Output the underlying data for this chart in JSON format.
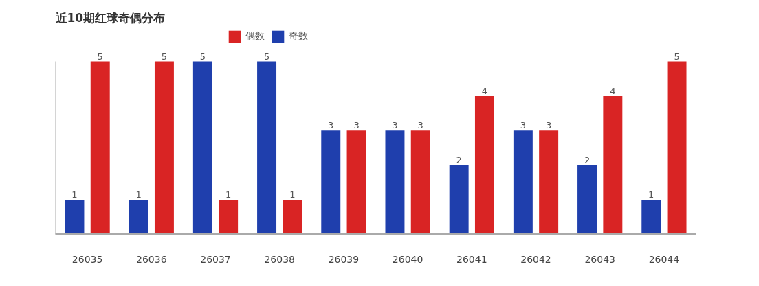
{
  "chart_data": {
    "type": "bar",
    "title": "近10期红球奇偶分布",
    "categories": [
      "26035",
      "26036",
      "26037",
      "26038",
      "26039",
      "26040",
      "26041",
      "26042",
      "26043",
      "26044"
    ],
    "series": [
      {
        "name": "奇数",
        "color": "#1f3fad",
        "values": [
          1,
          1,
          5,
          5,
          3,
          3,
          2,
          3,
          2,
          1
        ]
      },
      {
        "name": "偶数",
        "color": "#d92424",
        "values": [
          5,
          5,
          1,
          1,
          3,
          3,
          4,
          3,
          4,
          5
        ]
      }
    ],
    "ylim": [
      0,
      5
    ],
    "data_labels": true,
    "legend": "top",
    "grid": false,
    "tick_labels": "x"
  }
}
